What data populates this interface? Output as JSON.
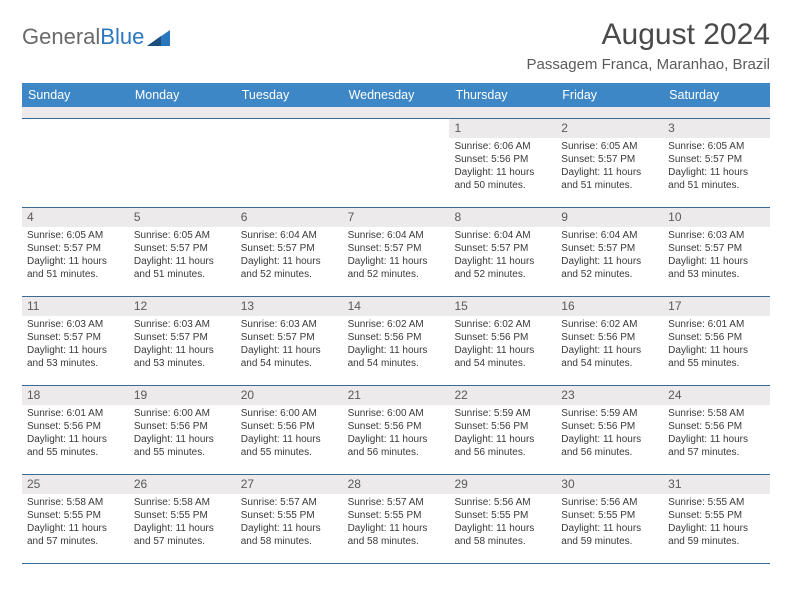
{
  "logo": {
    "part1": "General",
    "part2": "Blue"
  },
  "title": "August 2024",
  "location": "Passagem Franca, Maranhao, Brazil",
  "colors": {
    "header_bar": "#3d87c7",
    "header_text": "#ffffff",
    "daynum_bg": "#eceaea",
    "grid_line": "#3d6a93",
    "body_text": "#3a3a3a",
    "title_text": "#4a4a4a",
    "logo_gray": "#6a6a6a",
    "logo_blue": "#2b77bf"
  },
  "weekdays": [
    "Sunday",
    "Monday",
    "Tuesday",
    "Wednesday",
    "Thursday",
    "Friday",
    "Saturday"
  ],
  "weeks": [
    [
      {
        "n": "",
        "sr": "",
        "ss": "",
        "dl1": "",
        "dl2": ""
      },
      {
        "n": "",
        "sr": "",
        "ss": "",
        "dl1": "",
        "dl2": ""
      },
      {
        "n": "",
        "sr": "",
        "ss": "",
        "dl1": "",
        "dl2": ""
      },
      {
        "n": "",
        "sr": "",
        "ss": "",
        "dl1": "",
        "dl2": ""
      },
      {
        "n": "1",
        "sr": "Sunrise: 6:06 AM",
        "ss": "Sunset: 5:56 PM",
        "dl1": "Daylight: 11 hours",
        "dl2": "and 50 minutes."
      },
      {
        "n": "2",
        "sr": "Sunrise: 6:05 AM",
        "ss": "Sunset: 5:57 PM",
        "dl1": "Daylight: 11 hours",
        "dl2": "and 51 minutes."
      },
      {
        "n": "3",
        "sr": "Sunrise: 6:05 AM",
        "ss": "Sunset: 5:57 PM",
        "dl1": "Daylight: 11 hours",
        "dl2": "and 51 minutes."
      }
    ],
    [
      {
        "n": "4",
        "sr": "Sunrise: 6:05 AM",
        "ss": "Sunset: 5:57 PM",
        "dl1": "Daylight: 11 hours",
        "dl2": "and 51 minutes."
      },
      {
        "n": "5",
        "sr": "Sunrise: 6:05 AM",
        "ss": "Sunset: 5:57 PM",
        "dl1": "Daylight: 11 hours",
        "dl2": "and 51 minutes."
      },
      {
        "n": "6",
        "sr": "Sunrise: 6:04 AM",
        "ss": "Sunset: 5:57 PM",
        "dl1": "Daylight: 11 hours",
        "dl2": "and 52 minutes."
      },
      {
        "n": "7",
        "sr": "Sunrise: 6:04 AM",
        "ss": "Sunset: 5:57 PM",
        "dl1": "Daylight: 11 hours",
        "dl2": "and 52 minutes."
      },
      {
        "n": "8",
        "sr": "Sunrise: 6:04 AM",
        "ss": "Sunset: 5:57 PM",
        "dl1": "Daylight: 11 hours",
        "dl2": "and 52 minutes."
      },
      {
        "n": "9",
        "sr": "Sunrise: 6:04 AM",
        "ss": "Sunset: 5:57 PM",
        "dl1": "Daylight: 11 hours",
        "dl2": "and 52 minutes."
      },
      {
        "n": "10",
        "sr": "Sunrise: 6:03 AM",
        "ss": "Sunset: 5:57 PM",
        "dl1": "Daylight: 11 hours",
        "dl2": "and 53 minutes."
      }
    ],
    [
      {
        "n": "11",
        "sr": "Sunrise: 6:03 AM",
        "ss": "Sunset: 5:57 PM",
        "dl1": "Daylight: 11 hours",
        "dl2": "and 53 minutes."
      },
      {
        "n": "12",
        "sr": "Sunrise: 6:03 AM",
        "ss": "Sunset: 5:57 PM",
        "dl1": "Daylight: 11 hours",
        "dl2": "and 53 minutes."
      },
      {
        "n": "13",
        "sr": "Sunrise: 6:03 AM",
        "ss": "Sunset: 5:57 PM",
        "dl1": "Daylight: 11 hours",
        "dl2": "and 54 minutes."
      },
      {
        "n": "14",
        "sr": "Sunrise: 6:02 AM",
        "ss": "Sunset: 5:56 PM",
        "dl1": "Daylight: 11 hours",
        "dl2": "and 54 minutes."
      },
      {
        "n": "15",
        "sr": "Sunrise: 6:02 AM",
        "ss": "Sunset: 5:56 PM",
        "dl1": "Daylight: 11 hours",
        "dl2": "and 54 minutes."
      },
      {
        "n": "16",
        "sr": "Sunrise: 6:02 AM",
        "ss": "Sunset: 5:56 PM",
        "dl1": "Daylight: 11 hours",
        "dl2": "and 54 minutes."
      },
      {
        "n": "17",
        "sr": "Sunrise: 6:01 AM",
        "ss": "Sunset: 5:56 PM",
        "dl1": "Daylight: 11 hours",
        "dl2": "and 55 minutes."
      }
    ],
    [
      {
        "n": "18",
        "sr": "Sunrise: 6:01 AM",
        "ss": "Sunset: 5:56 PM",
        "dl1": "Daylight: 11 hours",
        "dl2": "and 55 minutes."
      },
      {
        "n": "19",
        "sr": "Sunrise: 6:00 AM",
        "ss": "Sunset: 5:56 PM",
        "dl1": "Daylight: 11 hours",
        "dl2": "and 55 minutes."
      },
      {
        "n": "20",
        "sr": "Sunrise: 6:00 AM",
        "ss": "Sunset: 5:56 PM",
        "dl1": "Daylight: 11 hours",
        "dl2": "and 55 minutes."
      },
      {
        "n": "21",
        "sr": "Sunrise: 6:00 AM",
        "ss": "Sunset: 5:56 PM",
        "dl1": "Daylight: 11 hours",
        "dl2": "and 56 minutes."
      },
      {
        "n": "22",
        "sr": "Sunrise: 5:59 AM",
        "ss": "Sunset: 5:56 PM",
        "dl1": "Daylight: 11 hours",
        "dl2": "and 56 minutes."
      },
      {
        "n": "23",
        "sr": "Sunrise: 5:59 AM",
        "ss": "Sunset: 5:56 PM",
        "dl1": "Daylight: 11 hours",
        "dl2": "and 56 minutes."
      },
      {
        "n": "24",
        "sr": "Sunrise: 5:58 AM",
        "ss": "Sunset: 5:56 PM",
        "dl1": "Daylight: 11 hours",
        "dl2": "and 57 minutes."
      }
    ],
    [
      {
        "n": "25",
        "sr": "Sunrise: 5:58 AM",
        "ss": "Sunset: 5:55 PM",
        "dl1": "Daylight: 11 hours",
        "dl2": "and 57 minutes."
      },
      {
        "n": "26",
        "sr": "Sunrise: 5:58 AM",
        "ss": "Sunset: 5:55 PM",
        "dl1": "Daylight: 11 hours",
        "dl2": "and 57 minutes."
      },
      {
        "n": "27",
        "sr": "Sunrise: 5:57 AM",
        "ss": "Sunset: 5:55 PM",
        "dl1": "Daylight: 11 hours",
        "dl2": "and 58 minutes."
      },
      {
        "n": "28",
        "sr": "Sunrise: 5:57 AM",
        "ss": "Sunset: 5:55 PM",
        "dl1": "Daylight: 11 hours",
        "dl2": "and 58 minutes."
      },
      {
        "n": "29",
        "sr": "Sunrise: 5:56 AM",
        "ss": "Sunset: 5:55 PM",
        "dl1": "Daylight: 11 hours",
        "dl2": "and 58 minutes."
      },
      {
        "n": "30",
        "sr": "Sunrise: 5:56 AM",
        "ss": "Sunset: 5:55 PM",
        "dl1": "Daylight: 11 hours",
        "dl2": "and 59 minutes."
      },
      {
        "n": "31",
        "sr": "Sunrise: 5:55 AM",
        "ss": "Sunset: 5:55 PM",
        "dl1": "Daylight: 11 hours",
        "dl2": "and 59 minutes."
      }
    ]
  ]
}
